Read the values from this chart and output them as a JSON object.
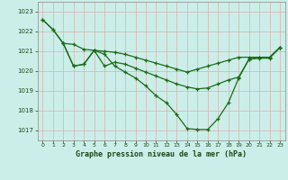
{
  "title": "Graphe pression niveau de la mer (hPa)",
  "bg_color": "#cceee8",
  "grid_color": "#d8b0b0",
  "line_color": "#1a6b1a",
  "xlim": [
    -0.5,
    23.5
  ],
  "ylim": [
    1016.5,
    1023.5
  ],
  "yticks": [
    1017,
    1018,
    1019,
    1020,
    1021,
    1022,
    1023
  ],
  "xticks": [
    0,
    1,
    2,
    3,
    4,
    5,
    6,
    7,
    8,
    9,
    10,
    11,
    12,
    13,
    14,
    15,
    16,
    17,
    18,
    19,
    20,
    21,
    22,
    23
  ],
  "line1_x": [
    0,
    1,
    2,
    3,
    4,
    5,
    6,
    7,
    8,
    9,
    10,
    11,
    12,
    13,
    14,
    15,
    16,
    17,
    18,
    19,
    20,
    21,
    22,
    23
  ],
  "line1_y": [
    1022.6,
    1022.1,
    1021.4,
    1021.35,
    1021.1,
    1021.05,
    1021.0,
    1020.95,
    1020.85,
    1020.7,
    1020.55,
    1020.4,
    1020.25,
    1020.1,
    1019.95,
    1020.1,
    1020.25,
    1020.4,
    1020.55,
    1020.7,
    1020.7,
    1020.7,
    1020.7,
    1021.2
  ],
  "line2_x": [
    2,
    3,
    4,
    5,
    6,
    7,
    8,
    9,
    10,
    11,
    12,
    13,
    14,
    15,
    16,
    17,
    18,
    19,
    20,
    21,
    22,
    23
  ],
  "line2_y": [
    1021.4,
    1020.25,
    1020.35,
    1021.05,
    1020.25,
    1020.45,
    1020.35,
    1020.15,
    1019.95,
    1019.75,
    1019.55,
    1019.35,
    1019.2,
    1019.1,
    1019.15,
    1019.35,
    1019.55,
    1019.7,
    1020.6,
    1020.7,
    1020.7,
    1021.2
  ],
  "line3_x": [
    0,
    1,
    2,
    3,
    4,
    5,
    6,
    7,
    8,
    9,
    10,
    11,
    12,
    13,
    14,
    15,
    16,
    17,
    18,
    19,
    20,
    21,
    22,
    23
  ],
  "line3_y": [
    1022.6,
    1022.1,
    1021.4,
    1020.25,
    1020.35,
    1021.05,
    1020.85,
    1020.25,
    1019.95,
    1019.65,
    1019.25,
    1018.75,
    1018.4,
    1017.8,
    1017.1,
    1017.05,
    1017.05,
    1017.6,
    1018.4,
    1019.65,
    1020.6,
    1020.65,
    1020.65,
    1021.2
  ]
}
